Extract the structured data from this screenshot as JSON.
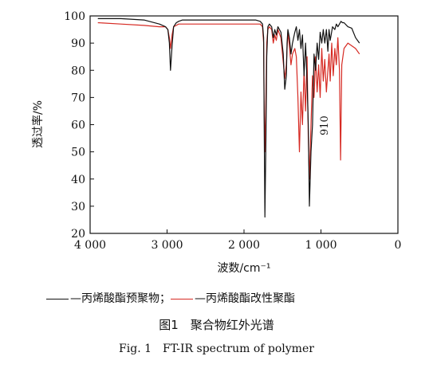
{
  "chart_data": {
    "type": "line",
    "xlabel": "波数/cm⁻¹",
    "ylabel": "透过率/%",
    "xlim": [
      4000,
      0
    ],
    "ylim": [
      20,
      100
    ],
    "x_ticks": [
      "4 000",
      "3 000",
      "2 000",
      "1 000",
      "0"
    ],
    "y_ticks": [
      "20",
      "30",
      "40",
      "50",
      "60",
      "70",
      "80",
      "90",
      "100"
    ],
    "grid": false,
    "legend_placement": "bottom",
    "annotations": [
      {
        "text": "910",
        "x": 910,
        "y": 85
      }
    ],
    "series": [
      {
        "name": "丙烯酸酯预聚物",
        "color": "#111111",
        "x": [
          3900,
          3600,
          3300,
          3100,
          3020,
          2990,
          2970,
          2955,
          2935,
          2915,
          2880,
          2850,
          2800,
          2600,
          2300,
          2000,
          1850,
          1790,
          1760,
          1745,
          1738,
          1728,
          1715,
          1705,
          1690,
          1670,
          1640,
          1620,
          1600,
          1580,
          1560,
          1520,
          1490,
          1470,
          1450,
          1440,
          1430,
          1410,
          1390,
          1370,
          1340,
          1320,
          1300,
          1280,
          1260,
          1240,
          1220,
          1200,
          1180,
          1165,
          1150,
          1130,
          1110,
          1090,
          1070,
          1050,
          1030,
          1010,
          990,
          970,
          950,
          930,
          910,
          895,
          880,
          850,
          820,
          800,
          780,
          760,
          740,
          720,
          700,
          650,
          600,
          550,
          500
        ],
        "values": [
          99,
          99,
          98.5,
          97,
          96,
          95,
          90,
          80,
          89,
          96,
          97.5,
          98,
          98.5,
          98.5,
          98.5,
          98.5,
          98.5,
          98,
          97,
          92,
          60,
          26,
          55,
          85,
          96,
          97,
          96,
          92,
          95,
          93,
          96,
          94,
          86,
          73,
          78,
          90,
          95,
          92,
          86,
          90,
          94,
          96,
          91,
          95,
          88,
          93,
          78,
          90,
          76,
          60,
          30,
          50,
          60,
          86,
          80,
          90,
          84,
          94,
          90,
          95,
          90,
          95,
          87,
          95,
          91,
          96,
          95,
          97,
          96,
          97,
          98,
          97.5,
          97.5,
          96,
          95.5,
          92,
          90
        ]
      },
      {
        "name": "丙烯酸酯改性聚酯",
        "color": "#d62a23",
        "x": [
          3900,
          3600,
          3300,
          3100,
          3020,
          2990,
          2970,
          2955,
          2935,
          2915,
          2880,
          2850,
          2800,
          2600,
          2300,
          2000,
          1850,
          1790,
          1760,
          1745,
          1738,
          1728,
          1715,
          1705,
          1690,
          1670,
          1640,
          1620,
          1600,
          1580,
          1560,
          1520,
          1490,
          1470,
          1450,
          1440,
          1430,
          1410,
          1390,
          1370,
          1340,
          1320,
          1300,
          1280,
          1260,
          1240,
          1220,
          1200,
          1180,
          1165,
          1150,
          1130,
          1110,
          1090,
          1070,
          1050,
          1030,
          1010,
          990,
          970,
          950,
          930,
          910,
          895,
          880,
          860,
          840,
          820,
          800,
          780,
          760,
          745,
          730,
          700,
          650,
          600,
          550,
          500
        ],
        "values": [
          97.5,
          97,
          96.5,
          96,
          96,
          95,
          92,
          88,
          93,
          96,
          96.5,
          97,
          97,
          97,
          97,
          97,
          97,
          97,
          96,
          90,
          65,
          50,
          70,
          90,
          95,
          96,
          95,
          90,
          93,
          91,
          95,
          92,
          83,
          77,
          82,
          88,
          94,
          89,
          82,
          86,
          88,
          85,
          70,
          50,
          72,
          60,
          80,
          65,
          85,
          55,
          40,
          60,
          78,
          70,
          85,
          72,
          82,
          70,
          88,
          76,
          84,
          72,
          80,
          86,
          76,
          90,
          78,
          88,
          82,
          92,
          80,
          47,
          82,
          88,
          90,
          89,
          88,
          86
        ]
      }
    ]
  },
  "legend": {
    "item1_prefix": "—",
    "item1_label": "丙烯酸酯预聚物；",
    "item2_prefix": "—",
    "item2_label": "丙烯酸酯改性聚酯"
  },
  "caption": {
    "chinese": "图1　聚合物红外光谱",
    "english": "Fig. 1　FT-IR spectrum of polymer"
  }
}
